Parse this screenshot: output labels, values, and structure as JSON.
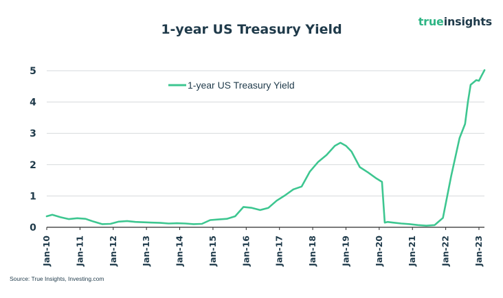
{
  "brand": {
    "part1": "true",
    "part2": "insights"
  },
  "source_note": "Source: True Insights, Investing.com",
  "colors": {
    "line": "#3dc690",
    "text": "#1f3a4a",
    "grid": "#d6d9dc",
    "axis": "#2a2a2a"
  },
  "chart_data": {
    "type": "line",
    "title": "1-year US Treasury Yield",
    "xlabel": "",
    "ylabel": "",
    "xlim": [
      "2010-01",
      "2023-03"
    ],
    "ylim": [
      0,
      5
    ],
    "yticks": [
      0,
      1,
      2,
      3,
      4,
      5
    ],
    "xtick_labels": [
      "Jan-10",
      "Jan-11",
      "Jan-12",
      "Jan-13",
      "Jan-14",
      "Jan-15",
      "Jan-16",
      "Jan-17",
      "Jan-18",
      "Jan-19",
      "Jan-20",
      "Jan-21",
      "Jan-22",
      "Jan-23"
    ],
    "grid": true,
    "legend": "top-left",
    "series": [
      {
        "name": "1-year US Treasury Yield",
        "x": [
          "2010-01",
          "2010-03",
          "2010-06",
          "2010-09",
          "2010-12",
          "2011-03",
          "2011-06",
          "2011-09",
          "2011-12",
          "2012-03",
          "2012-06",
          "2012-09",
          "2012-12",
          "2013-03",
          "2013-06",
          "2013-09",
          "2013-12",
          "2014-03",
          "2014-06",
          "2014-09",
          "2014-12",
          "2015-03",
          "2015-06",
          "2015-09",
          "2015-12",
          "2016-03",
          "2016-06",
          "2016-09",
          "2016-12",
          "2017-03",
          "2017-06",
          "2017-09",
          "2017-12",
          "2018-03",
          "2018-06",
          "2018-09",
          "2018-11",
          "2019-01",
          "2019-03",
          "2019-06",
          "2019-09",
          "2019-12",
          "2020-02",
          "2020-03",
          "2020-04",
          "2020-06",
          "2020-09",
          "2020-12",
          "2021-03",
          "2021-06",
          "2021-09",
          "2021-12",
          "2022-03",
          "2022-06",
          "2022-08",
          "2022-09",
          "2022-10",
          "2022-12",
          "2023-01",
          "2023-02",
          "2023-03"
        ],
        "y": [
          0.35,
          0.4,
          0.32,
          0.26,
          0.29,
          0.27,
          0.18,
          0.1,
          0.11,
          0.18,
          0.2,
          0.17,
          0.16,
          0.15,
          0.14,
          0.12,
          0.13,
          0.12,
          0.1,
          0.11,
          0.23,
          0.25,
          0.27,
          0.35,
          0.65,
          0.62,
          0.55,
          0.62,
          0.85,
          1.02,
          1.21,
          1.3,
          1.78,
          2.09,
          2.31,
          2.6,
          2.7,
          2.6,
          2.42,
          1.92,
          1.75,
          1.56,
          1.45,
          0.15,
          0.17,
          0.15,
          0.12,
          0.1,
          0.07,
          0.05,
          0.07,
          0.3,
          1.65,
          2.85,
          3.3,
          4.0,
          4.55,
          4.7,
          4.68,
          4.85,
          5.02
        ]
      }
    ]
  }
}
